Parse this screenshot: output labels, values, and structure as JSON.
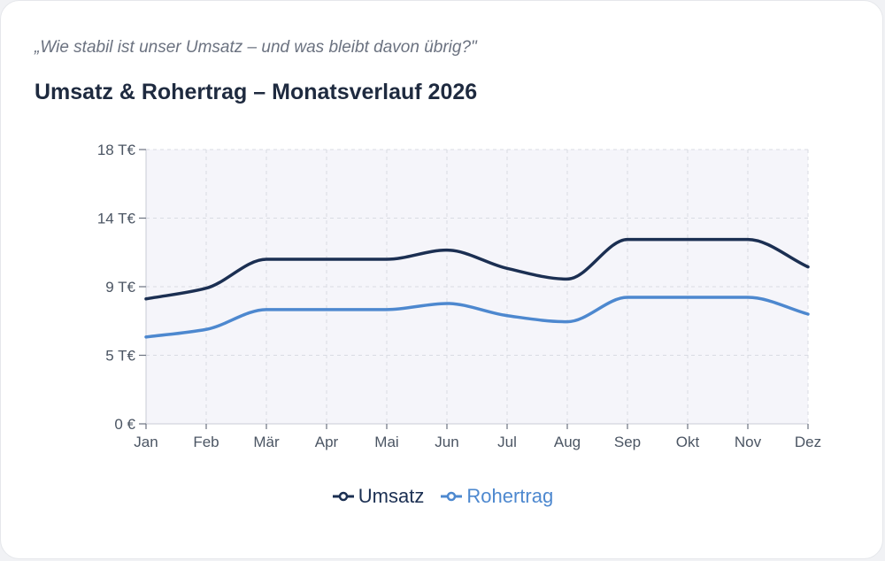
{
  "subtitle": "„Wie stabil ist unser Umsatz – und was bleibt davon übrig?\"",
  "title": "Umsatz & Rohertrag – Monatsverlauf 2026",
  "chart_data": {
    "type": "line",
    "categories": [
      "Jan",
      "Feb",
      "Mär",
      "Apr",
      "Mai",
      "Jun",
      "Jul",
      "Aug",
      "Sep",
      "Okt",
      "Nov",
      "Dez"
    ],
    "series": [
      {
        "name": "Umsatz",
        "values": [
          8.2,
          8.9,
          10.8,
          10.8,
          10.8,
          11.4,
          10.2,
          9.5,
          12.1,
          12.1,
          12.1,
          10.3
        ],
        "color": "#1b2f52"
      },
      {
        "name": "Rohertrag",
        "values": [
          5.7,
          6.2,
          7.5,
          7.5,
          7.5,
          7.9,
          7.1,
          6.7,
          8.3,
          8.3,
          8.3,
          7.2
        ],
        "color": "#4d88cf"
      }
    ],
    "yticks": [
      {
        "value": 0,
        "label": "0 €"
      },
      {
        "value": 4.5,
        "label": "5 T€"
      },
      {
        "value": 9,
        "label": "9 T€"
      },
      {
        "value": 13.5,
        "label": "14 T€"
      },
      {
        "value": 18,
        "label": "18 T€"
      }
    ],
    "ylim": [
      0,
      18
    ],
    "grid": true,
    "legend_position": "bottom-center"
  }
}
